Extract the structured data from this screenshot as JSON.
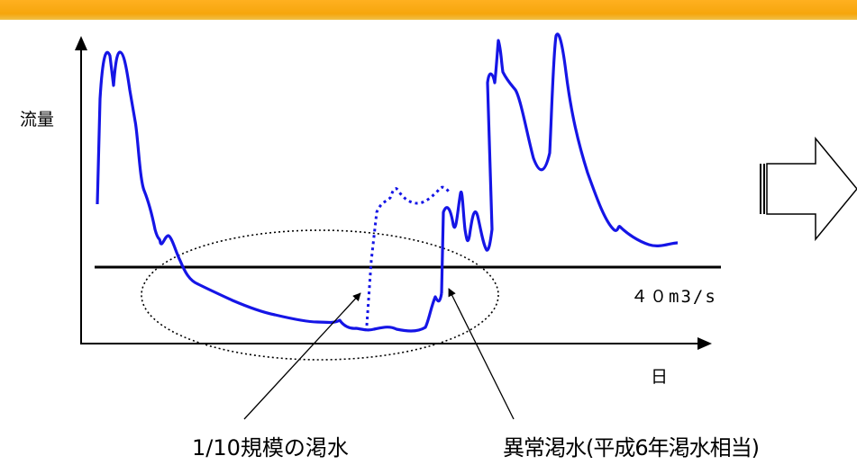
{
  "labels": {
    "y_axis": "流量",
    "x_axis": "日",
    "threshold": "４０m3/s",
    "callout_left": "1/10規模の渇水",
    "callout_right": "異常渇水(平成6年渇水相当)"
  },
  "colors": {
    "header_bar": "#F6A60C",
    "flow_line": "#1515E6",
    "axis": "#000000"
  },
  "icons": [
    "right-arrow-icon"
  ]
}
